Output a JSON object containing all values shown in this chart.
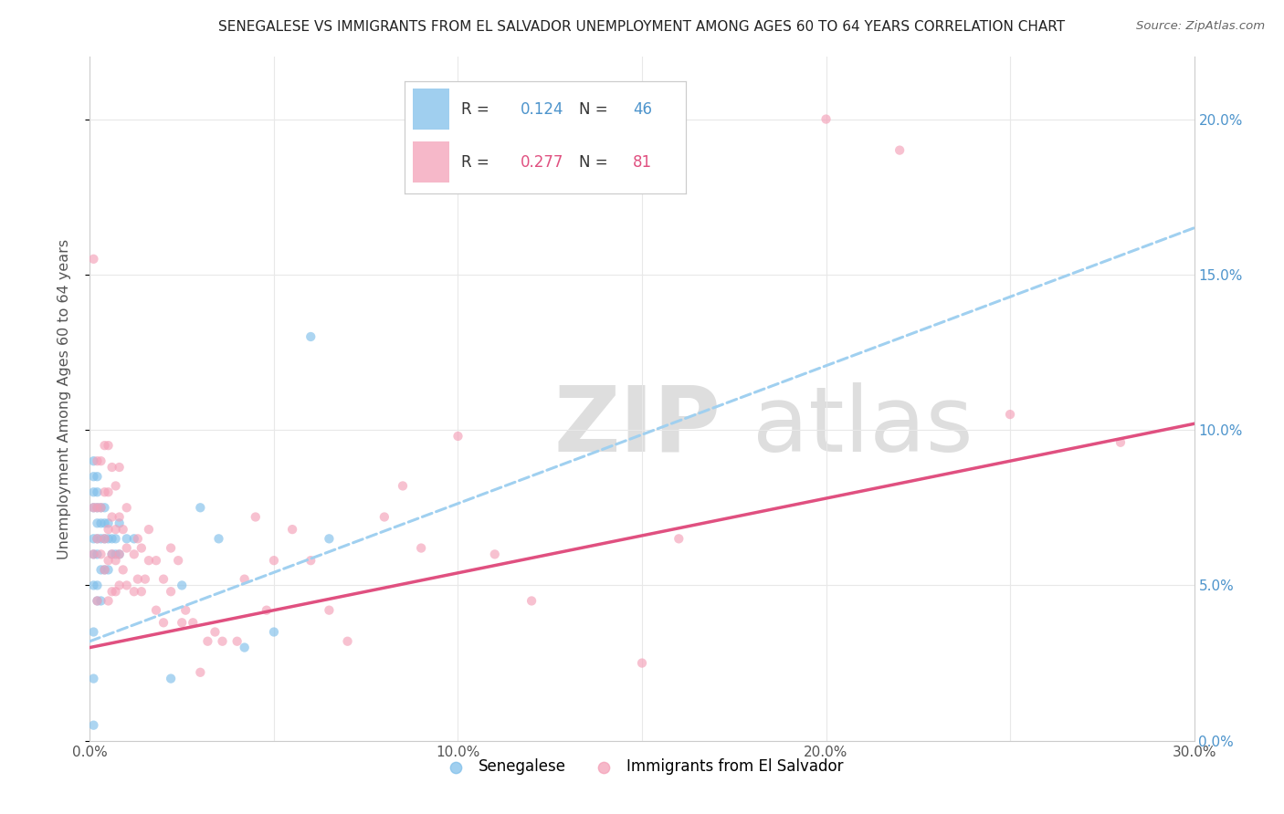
{
  "title": "SENEGALESE VS IMMIGRANTS FROM EL SALVADOR UNEMPLOYMENT AMONG AGES 60 TO 64 YEARS CORRELATION CHART",
  "source": "Source: ZipAtlas.com",
  "ylabel_label": "Unemployment Among Ages 60 to 64 years",
  "xlim": [
    0.0,
    0.3
  ],
  "ylim": [
    0.0,
    0.22
  ],
  "scatter_alpha": 0.65,
  "scatter_size": 55,
  "blue_color": "#80bfea",
  "pink_color": "#f4a0b8",
  "blue_line_color": "#a0d0f0",
  "pink_line_color": "#e05080",
  "grid_color": "#e8e8e8",
  "blue_line_start": 0.032,
  "blue_line_end": 0.165,
  "pink_line_start": 0.03,
  "pink_line_end": 0.102,
  "blue_x": [
    0.001,
    0.001,
    0.001,
    0.001,
    0.001,
    0.001,
    0.001,
    0.001,
    0.001,
    0.001,
    0.002,
    0.002,
    0.002,
    0.002,
    0.002,
    0.002,
    0.002,
    0.002,
    0.003,
    0.003,
    0.003,
    0.003,
    0.003,
    0.004,
    0.004,
    0.004,
    0.004,
    0.005,
    0.005,
    0.005,
    0.006,
    0.006,
    0.007,
    0.007,
    0.008,
    0.008,
    0.01,
    0.012,
    0.022,
    0.025,
    0.03,
    0.035,
    0.042,
    0.05,
    0.06,
    0.065
  ],
  "blue_y": [
    0.005,
    0.02,
    0.035,
    0.05,
    0.06,
    0.065,
    0.075,
    0.08,
    0.085,
    0.09,
    0.045,
    0.05,
    0.06,
    0.065,
    0.07,
    0.075,
    0.08,
    0.085,
    0.045,
    0.055,
    0.065,
    0.07,
    0.075,
    0.055,
    0.065,
    0.07,
    0.075,
    0.055,
    0.065,
    0.07,
    0.06,
    0.065,
    0.06,
    0.065,
    0.06,
    0.07,
    0.065,
    0.065,
    0.02,
    0.05,
    0.075,
    0.065,
    0.03,
    0.035,
    0.13,
    0.065
  ],
  "pink_x": [
    0.001,
    0.001,
    0.001,
    0.002,
    0.002,
    0.002,
    0.002,
    0.003,
    0.003,
    0.003,
    0.004,
    0.004,
    0.004,
    0.004,
    0.005,
    0.005,
    0.005,
    0.005,
    0.005,
    0.006,
    0.006,
    0.006,
    0.006,
    0.007,
    0.007,
    0.007,
    0.007,
    0.008,
    0.008,
    0.008,
    0.008,
    0.009,
    0.009,
    0.01,
    0.01,
    0.01,
    0.012,
    0.012,
    0.013,
    0.013,
    0.014,
    0.014,
    0.015,
    0.016,
    0.016,
    0.018,
    0.018,
    0.02,
    0.02,
    0.022,
    0.022,
    0.024,
    0.025,
    0.026,
    0.028,
    0.03,
    0.032,
    0.034,
    0.036,
    0.04,
    0.042,
    0.045,
    0.048,
    0.05,
    0.055,
    0.06,
    0.065,
    0.07,
    0.08,
    0.085,
    0.09,
    0.1,
    0.11,
    0.12,
    0.15,
    0.16,
    0.2,
    0.22,
    0.25,
    0.28
  ],
  "pink_y": [
    0.06,
    0.075,
    0.155,
    0.045,
    0.065,
    0.075,
    0.09,
    0.06,
    0.075,
    0.09,
    0.055,
    0.065,
    0.08,
    0.095,
    0.045,
    0.058,
    0.068,
    0.08,
    0.095,
    0.048,
    0.06,
    0.072,
    0.088,
    0.048,
    0.058,
    0.068,
    0.082,
    0.05,
    0.06,
    0.072,
    0.088,
    0.055,
    0.068,
    0.05,
    0.062,
    0.075,
    0.048,
    0.06,
    0.052,
    0.065,
    0.048,
    0.062,
    0.052,
    0.058,
    0.068,
    0.042,
    0.058,
    0.038,
    0.052,
    0.048,
    0.062,
    0.058,
    0.038,
    0.042,
    0.038,
    0.022,
    0.032,
    0.035,
    0.032,
    0.032,
    0.052,
    0.072,
    0.042,
    0.058,
    0.068,
    0.058,
    0.042,
    0.032,
    0.072,
    0.082,
    0.062,
    0.098,
    0.06,
    0.045,
    0.025,
    0.065,
    0.2,
    0.19,
    0.105,
    0.096
  ]
}
